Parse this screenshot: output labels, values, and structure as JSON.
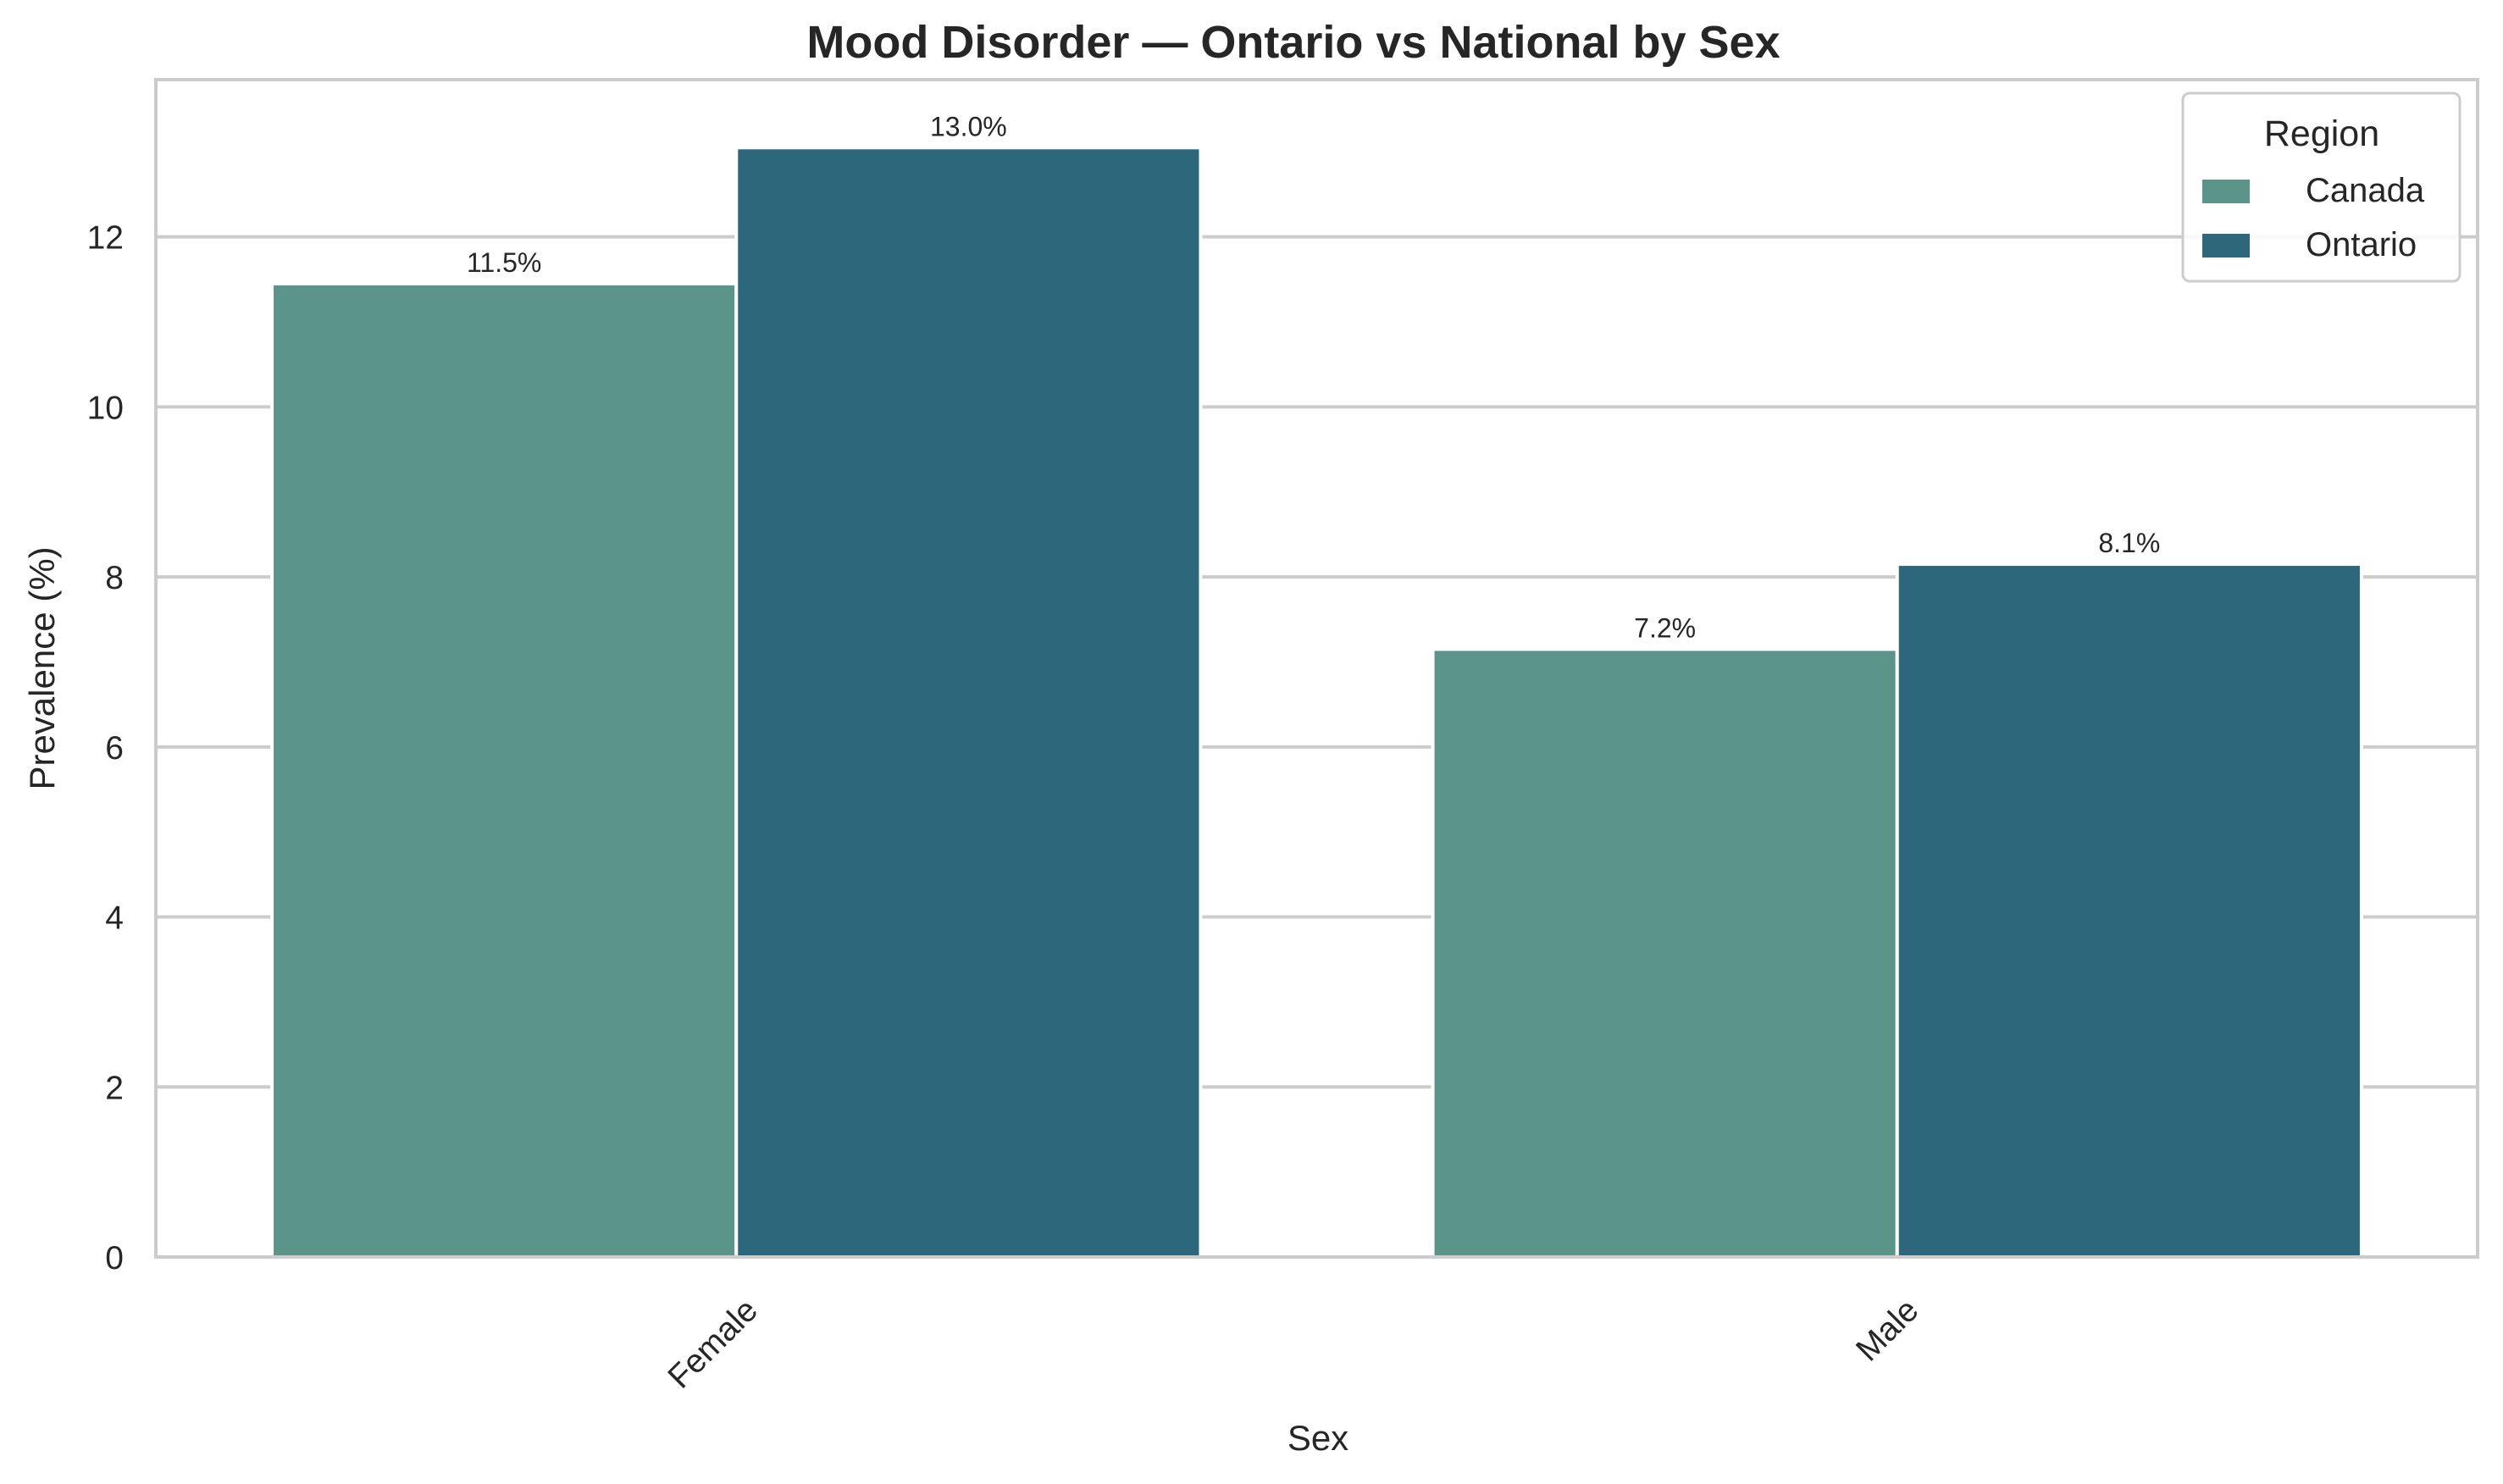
{
  "chart_data": {
    "type": "bar",
    "title": "Mood Disorder — Ontario vs National by Sex",
    "xlabel": "Sex",
    "ylabel": "Prevalence (%)",
    "categories": [
      "Female",
      "Male"
    ],
    "series": [
      {
        "name": "Canada",
        "values": [
          11.45,
          7.15
        ],
        "labels": [
          "11.5%",
          "7.2%"
        ],
        "color": "#5b958a"
      },
      {
        "name": "Ontario",
        "values": [
          13.05,
          8.15
        ],
        "labels": [
          "13.0%",
          "8.1%"
        ],
        "color": "#2d677b"
      }
    ],
    "ylim": [
      0,
      13.85
    ],
    "yticks": [
      0,
      2,
      4,
      6,
      8,
      10,
      12
    ],
    "grid": "horizontal",
    "legend": {
      "title": "Region",
      "placement": "top-right"
    },
    "x_tick_rotation": "45 degrees"
  }
}
